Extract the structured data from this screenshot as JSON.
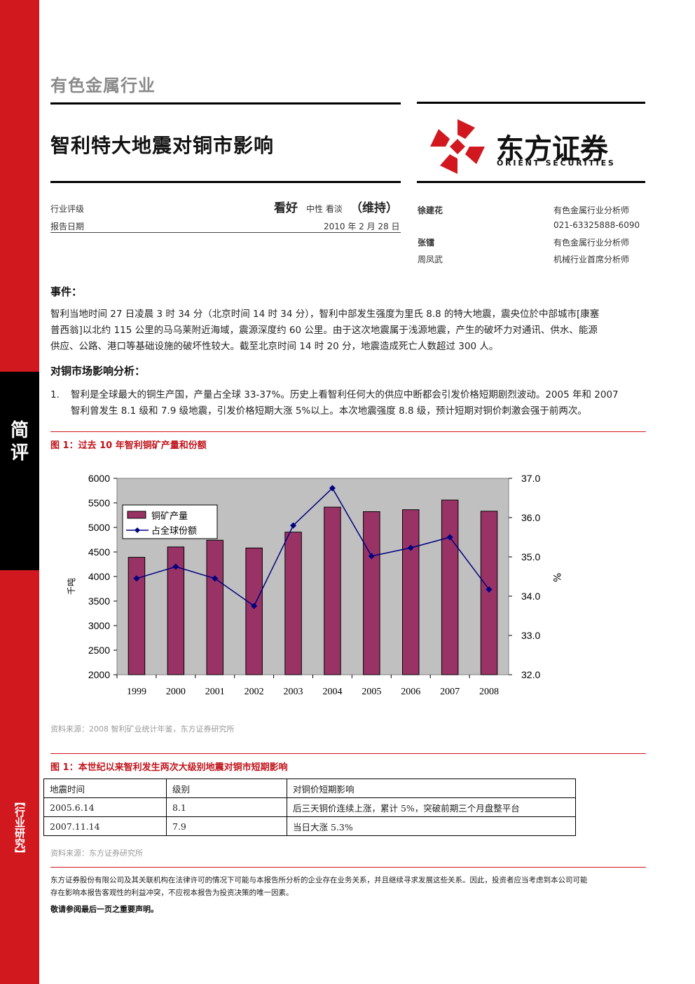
{
  "sidebar": {
    "tag": "简评",
    "label": "【行业研究】"
  },
  "header": {
    "industry": "有色金属行业",
    "title": "智利特大地震对铜市影响",
    "logo_cn": "东方证券",
    "logo_en": "ORIENT SECURITIES"
  },
  "rating": {
    "label": "行业评级",
    "value": "看好",
    "options": "中性 看淡",
    "status": "（维持）",
    "date_label": "报告日期",
    "date": "2010 年 2 月 28 日"
  },
  "analysts": [
    {
      "name": "徐建花",
      "title": "有色金属行业分析师",
      "bold": true
    },
    {
      "name": "",
      "title": "021-63325888-6090",
      "bold": false
    },
    {
      "name": "张镭",
      "title": "有色金属行业分析师",
      "bold": true
    },
    {
      "name": "周凤武",
      "title": "机械行业首席分析师",
      "bold": false
    }
  ],
  "event": {
    "heading": "事件：",
    "lines": [
      "智利当地时间 27 日凌晨 3 时 34 分（北京时间 14 时 34 分），智利中部发生强度为里氏 8.8 的特大地震，震央位於中部城市[康塞",
      "普西翁]以北约 115 公里的马乌莱附近海域，震源深度约 60 公里。由于这次地震属于浅源地震，产生的破坏力对通讯、供水、能源",
      "供应、公路、港口等基础设施的破坏性较大。截至北京时间 14 时 20 分，地震造成死亡人数超过 300 人。"
    ]
  },
  "analysis": {
    "heading": "对铜市场影响分析：",
    "item_no": "1.",
    "lines": [
      "智利是全球最大的铜生产国，产量占全球 33-37%。历史上看智利任何大的供应中断都会引发价格短期剧烈波动。2005 年和 2007",
      "智利曾发生 8.1 级和 7.9 级地震，引发价格短期大涨 5%以上。本次地震强度 8.8 级，预计短期对铜价刺激会强于前两次。"
    ]
  },
  "figure1": {
    "title": "图 1：过去 10 年智利铜矿产量和份额",
    "source": "资料来源：2008 智利矿业统计年鉴，东方证券研究所"
  },
  "chart_data": {
    "type": "bar",
    "title": "",
    "categories": [
      "1999",
      "2000",
      "2001",
      "2002",
      "2003",
      "2004",
      "2005",
      "2006",
      "2007",
      "2008"
    ],
    "ylabel": "千吨",
    "y2label": "%",
    "ylim": [
      2000,
      6000
    ],
    "y2lim": [
      32.0,
      37.0
    ],
    "yticks": [
      "6000",
      "5500",
      "5000",
      "4500",
      "4000",
      "3500",
      "3000",
      "2500",
      "2000"
    ],
    "y2ticks": [
      "37.0",
      "36.0",
      "35.0",
      "34.0",
      "33.0",
      "32.0"
    ],
    "legend_position": "top-left",
    "series": [
      {
        "name": "铜矿产量",
        "type": "bar",
        "axis": "left",
        "color": "#993366",
        "values": [
          4391,
          4602,
          4739,
          4581,
          4904,
          5413,
          5321,
          5361,
          5557,
          5330
        ]
      },
      {
        "name": "占全球份额",
        "type": "line",
        "axis": "right",
        "color": "#000080",
        "values": [
          34.45,
          34.75,
          34.45,
          33.75,
          35.8,
          36.75,
          35.02,
          35.23,
          35.5,
          34.17
        ]
      }
    ]
  },
  "table": {
    "title": "图 1：本世纪以来智利发生两次大级别地震对铜市短期影响",
    "headers": [
      "地震时间",
      "级别",
      "对铜价短期影响"
    ],
    "rows": [
      [
        "2005.6.14",
        "8.1",
        "后三天铜价连续上涨，累计 5%，突破前期三个月盘整平台"
      ],
      [
        "2007.11.14",
        "7.9",
        "当日大涨 5.3%"
      ]
    ],
    "source": "资料来源：东方证券研究所"
  },
  "disclaimer": {
    "lines": [
      "东方证券股份有限公司及其关联机构在法律许可的情况下可能与本报告所分析的企业存在业务关系，并且继续寻求发展这些关系。因此，投资者应当考虑到本公司可能",
      "存在影响本报告客观性的利益冲突，不应视本报告为投资决策的唯一因素。"
    ],
    "note": "敬请参阅最后一页之重要声明。"
  },
  "colors": {
    "brand_red": "#d2181f",
    "fig_red": "#c0141b",
    "bar": "#993366",
    "line": "#000080",
    "plot_bg": "#c0c0c0"
  }
}
